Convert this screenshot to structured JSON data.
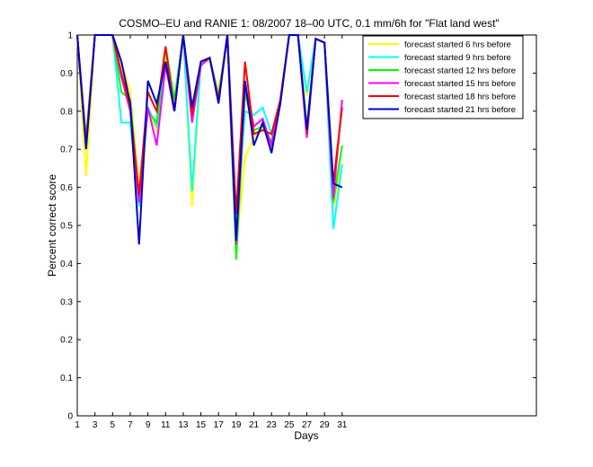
{
  "chart_data": {
    "type": "line",
    "title": "COSMO–EU and RANIE 1: 08/2007 18–00 UTC, 0.1 mm/6h for \"Flat land west\"",
    "xlabel": "Days",
    "ylabel": "Percent correct score",
    "xlim": [
      1,
      53
    ],
    "ylim": [
      0,
      1
    ],
    "x_ticks": [
      "1",
      "3",
      "5",
      "7",
      "9",
      "11",
      "13",
      "15",
      "17",
      "19",
      "21",
      "23",
      "25",
      "27",
      "29",
      "31"
    ],
    "y_ticks": [
      "0",
      "0.1",
      "0.2",
      "0.3",
      "0.4",
      "0.5",
      "0.6",
      "0.7",
      "0.8",
      "0.9",
      "1"
    ],
    "legend_position": "top-right",
    "x": [
      1,
      2,
      3,
      4,
      5,
      6,
      7,
      8,
      9,
      10,
      11,
      12,
      13,
      14,
      15,
      16,
      17,
      18,
      19,
      20,
      21,
      22,
      23,
      24,
      25,
      26,
      27,
      28,
      29,
      30,
      31
    ],
    "series": [
      {
        "name": "forecast started 6 hrs before",
        "color": "#ffff00",
        "values": [
          1,
          0.63,
          1,
          1,
          1,
          0.93,
          0.85,
          0.6,
          0.8,
          0.75,
          0.95,
          0.82,
          1,
          0.55,
          0.93,
          0.93,
          0.85,
          1,
          0.44,
          0.68,
          0.73,
          0.76,
          0.7,
          0.82,
          1,
          1,
          0.84,
          0.99,
          0.98,
          0.55,
          0.66
        ]
      },
      {
        "name": "forecast started 9 hrs before",
        "color": "#00ffff",
        "values": [
          1,
          0.72,
          1,
          1,
          1,
          0.77,
          0.77,
          0.55,
          0.81,
          0.76,
          0.93,
          0.8,
          1,
          0.59,
          0.93,
          0.94,
          0.84,
          1,
          0.5,
          0.8,
          0.79,
          0.81,
          0.74,
          0.83,
          1,
          1,
          0.85,
          0.99,
          0.98,
          0.49,
          0.66
        ]
      },
      {
        "name": "forecast started 12 hrs before",
        "color": "#00ff00",
        "values": [
          1,
          0.73,
          1,
          1,
          1,
          0.85,
          0.83,
          0.57,
          0.8,
          0.77,
          0.97,
          0.83,
          1,
          0.78,
          0.92,
          0.94,
          0.84,
          1,
          0.41,
          0.85,
          0.75,
          0.76,
          0.72,
          0.83,
          1,
          1,
          0.76,
          0.99,
          0.98,
          0.56,
          0.71
        ]
      },
      {
        "name": "forecast started 15 hrs before",
        "color": "#ff00ff",
        "values": [
          1,
          0.72,
          1,
          1,
          1,
          0.89,
          0.8,
          0.56,
          0.81,
          0.71,
          0.92,
          0.8,
          1,
          0.77,
          0.92,
          0.94,
          0.83,
          1,
          0.45,
          0.87,
          0.76,
          0.78,
          0.71,
          0.83,
          1,
          1,
          0.73,
          0.99,
          0.98,
          0.57,
          0.83
        ]
      },
      {
        "name": "forecast started 18 hrs before",
        "color": "#ff0000",
        "values": [
          1,
          0.71,
          1,
          1,
          1,
          0.9,
          0.81,
          0.58,
          0.85,
          0.8,
          0.97,
          0.8,
          1,
          0.79,
          0.93,
          0.94,
          0.83,
          1,
          0.53,
          0.93,
          0.74,
          0.75,
          0.74,
          0.83,
          1,
          1,
          0.74,
          0.99,
          0.98,
          0.61,
          0.81
        ]
      },
      {
        "name": "forecast started 21 hrs before",
        "color": "#0000cc",
        "values": [
          1,
          0.7,
          1,
          1,
          1,
          0.93,
          0.82,
          0.45,
          0.88,
          0.82,
          0.93,
          0.8,
          1,
          0.81,
          0.93,
          0.94,
          0.82,
          1,
          0.46,
          0.88,
          0.71,
          0.77,
          0.69,
          0.82,
          1,
          1,
          0.75,
          0.99,
          0.98,
          0.61,
          0.6
        ]
      }
    ]
  }
}
